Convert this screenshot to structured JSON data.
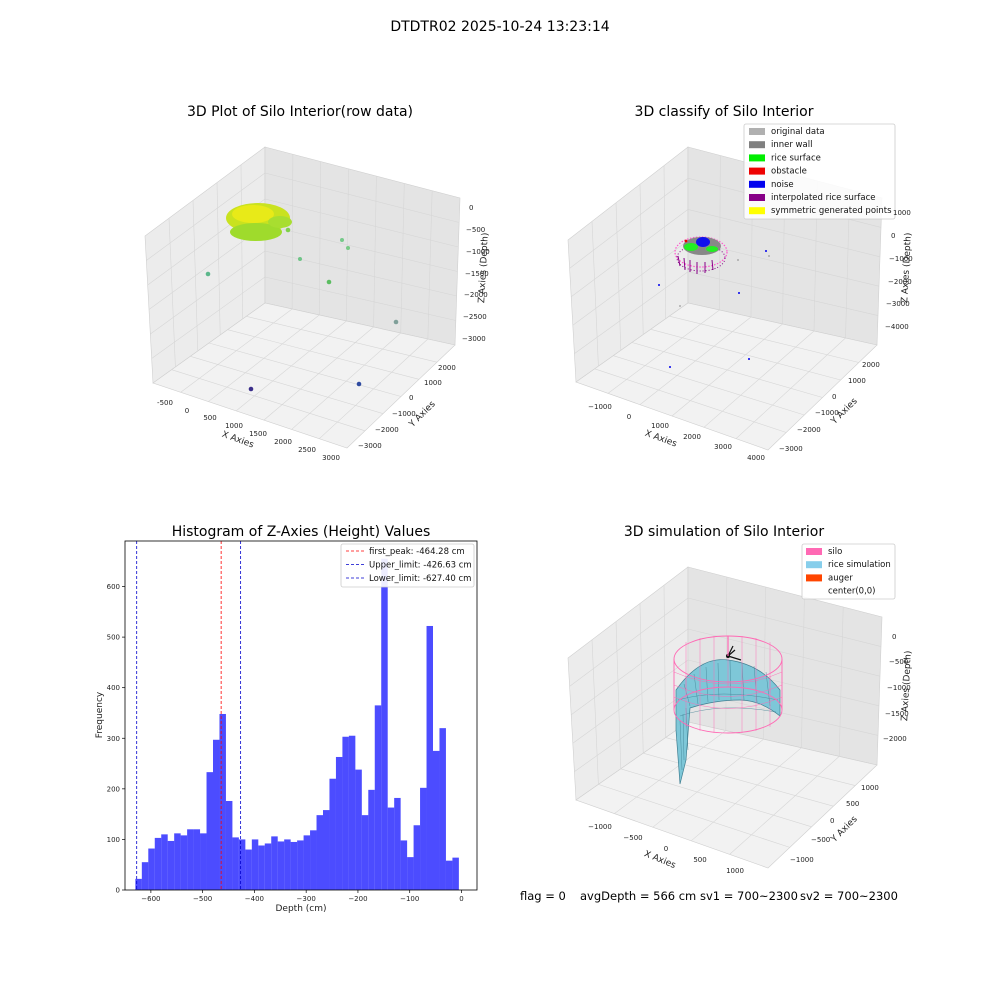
{
  "figure": {
    "suptitle": "DTDTR02 2025-10-24 13:23:14",
    "bottom_text": [
      "flag = 0",
      "avgDepth = 566 cm",
      "sv1 = 700~2300",
      "sv2 = 700~2300"
    ]
  },
  "panels": {
    "raw": {
      "title": "3D Plot of Silo Interior(row data)",
      "xlabel": "X Axies",
      "ylabel": "Y Axies",
      "zlabel": "Z Axies (Depth)",
      "xticks": [
        "-500",
        "0",
        "500",
        "1000",
        "1500",
        "2000",
        "2500",
        "3000"
      ],
      "yticks": [
        "2000",
        "1000",
        "0",
        "−1000",
        "−2000",
        "−3000"
      ],
      "zticks": [
        "0",
        "−500",
        "−1000",
        "−1500",
        "−2000",
        "−2500",
        "−3000"
      ]
    },
    "classify": {
      "title": "3D classify of Silo Interior",
      "xlabel": "X Axies",
      "ylabel": "Y Axies",
      "zlabel": "Z Axies (Depth)",
      "xticks": [
        "−1000",
        "0",
        "1000",
        "2000",
        "3000",
        "4000"
      ],
      "yticks": [
        "2000",
        "1000",
        "0",
        "−1000",
        "−2000",
        "−3000"
      ],
      "zticks": [
        "1000",
        "0",
        "−1000",
        "−2000",
        "−3000",
        "−4000"
      ],
      "legend": [
        {
          "label": "original data",
          "color": "#b0b0b0"
        },
        {
          "label": "inner wall",
          "color": "#808080"
        },
        {
          "label": "rice surface",
          "color": "#00ee00"
        },
        {
          "label": "obstacle",
          "color": "#ee0000"
        },
        {
          "label": "noise",
          "color": "#0000ee"
        },
        {
          "label": "interpolated rice surface",
          "color": "#880088"
        },
        {
          "label": "symmetric generated points",
          "color": "#ffff00"
        }
      ]
    },
    "simulation": {
      "title": "3D simulation of Silo Interior",
      "xlabel": "X Axies",
      "ylabel": "Y Axies",
      "zlabel": "Z Axies (Depth)",
      "xticks": [
        "−1000",
        "−500",
        "0",
        "500",
        "1000"
      ],
      "yticks": [
        "1000",
        "500",
        "0",
        "−500",
        "−1000"
      ],
      "zticks": [
        "0",
        "−500",
        "−1000",
        "−1500",
        "−2000"
      ],
      "legend": [
        {
          "label": "silo",
          "color": "#ff69b4"
        },
        {
          "label": "rice simulation",
          "color": "#87ceeb"
        },
        {
          "label": "auger",
          "color": "#ff4500"
        },
        {
          "label": "center(0,0)",
          "color": "#ffffff"
        }
      ]
    }
  },
  "chart_data": {
    "type": "bar",
    "title": "Histogram of Z-Axies (Height) Values",
    "xlabel": "Depth (cm)",
    "ylabel": "Frequency",
    "xlim": [
      -650,
      30
    ],
    "ylim": [
      0,
      690
    ],
    "xticks": [
      -600,
      -500,
      -400,
      -300,
      -200,
      -100,
      0
    ],
    "yticks": [
      0,
      100,
      200,
      300,
      400,
      500,
      600
    ],
    "bar_color": "#0000ff",
    "bin_start": -630,
    "bin_width": 12.5,
    "values": [
      22,
      55,
      82,
      103,
      110,
      97,
      112,
      108,
      120,
      120,
      112,
      233,
      297,
      348,
      176,
      104,
      100,
      80,
      100,
      88,
      92,
      106,
      96,
      100,
      95,
      98,
      108,
      118,
      148,
      158,
      220,
      263,
      303,
      305,
      238,
      148,
      198,
      365,
      655,
      163,
      182,
      98,
      65,
      128,
      202,
      522,
      275,
      320,
      58,
      64
    ],
    "lines": [
      {
        "label": "first_peak: -464.28 cm",
        "x": -464.28,
        "color": "#ff0000"
      },
      {
        "label": "Upper_limit: -426.63 cm",
        "x": -426.63,
        "color": "#0000cc"
      },
      {
        "label": "Lower_limit: -627.40 cm",
        "x": -627.4,
        "color": "#0000cc"
      }
    ]
  }
}
